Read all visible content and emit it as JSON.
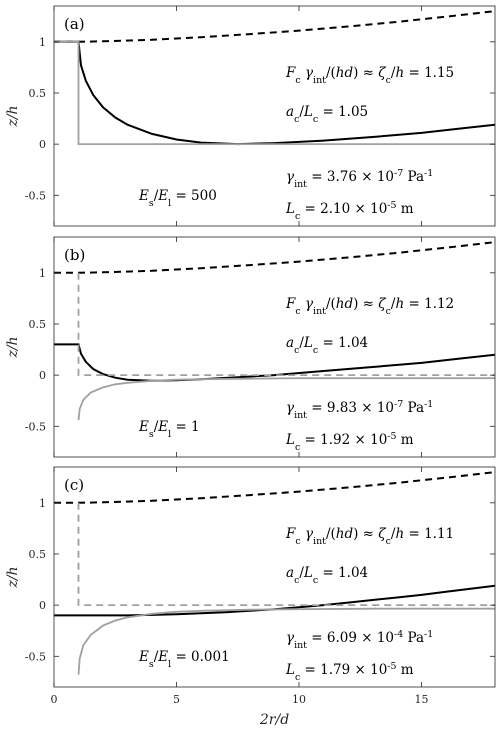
{
  "chart_data": {
    "type": "line",
    "xlabel": "2r/d",
    "ylabel": "z/h",
    "xlim": [
      0,
      18
    ],
    "ylim": [
      -0.8,
      1.35
    ],
    "xticks": [
      0,
      5,
      10,
      15
    ],
    "yticks": [
      -0.5,
      0,
      0.5,
      1
    ],
    "ytick_labels": [
      "-0.5",
      "0",
      "0.5",
      "1"
    ],
    "grid": false,
    "panels": [
      {
        "label": "(a)",
        "annotations": {
          "force_ratio": "F_c γ_int/(hd) ≈ ζ_c/h = 1.15",
          "ac_ratio": "a_c/L_c = 1.05",
          "modulus_ratio": "E_s/E_l = 500",
          "gamma": "γ_int = 3.76 × 10^-7 Pa^-1",
          "lc": "L_c = 2.10 × 10^-5 m"
        },
        "series": [
          {
            "style": "black-dashed",
            "x": [
              0,
              1,
              2,
              4,
              6,
              8,
              10,
              12,
              14,
              16,
              18
            ],
            "y": [
              1.0,
              1.0,
              1.005,
              1.02,
              1.045,
              1.075,
              1.11,
              1.15,
              1.195,
              1.245,
              1.3
            ]
          },
          {
            "style": "black-solid",
            "x": [
              0,
              1,
              1.1,
              1.3,
              1.6,
              2,
              2.5,
              3,
              4,
              5,
              6,
              7.5,
              9,
              11,
              13,
              15,
              16.5,
              18
            ],
            "y": [
              1.0,
              1.0,
              0.77,
              0.62,
              0.48,
              0.36,
              0.26,
              0.19,
              0.1,
              0.045,
              0.015,
              0.0,
              0.01,
              0.035,
              0.07,
              0.11,
              0.15,
              0.19
            ]
          },
          {
            "style": "grey-solid",
            "x": [
              0,
              1,
              1,
              18
            ],
            "y": [
              1.0,
              1.0,
              0.0,
              0.0
            ]
          }
        ]
      },
      {
        "label": "(b)",
        "annotations": {
          "force_ratio": "F_c γ_int/(hd) ≈ ζ_c/h = 1.12",
          "ac_ratio": "a_c/L_c = 1.04",
          "modulus_ratio": "E_s/E_l = 1",
          "gamma": "γ_int = 9.83 × 10^-7 Pa^-1",
          "lc": "L_c = 1.92 × 10^-5 m"
        },
        "series": [
          {
            "style": "black-dashed",
            "x": [
              0,
              1,
              2,
              4,
              6,
              8,
              10,
              12,
              14,
              16,
              18
            ],
            "y": [
              1.0,
              1.0,
              1.005,
              1.02,
              1.045,
              1.075,
              1.11,
              1.15,
              1.195,
              1.245,
              1.3
            ]
          },
          {
            "style": "black-solid",
            "x": [
              0,
              1,
              1.1,
              1.3,
              1.6,
              2,
              2.5,
              3,
              4,
              5,
              6,
              7.5,
              9,
              11,
              13,
              15,
              16.5,
              18
            ],
            "y": [
              0.3,
              0.3,
              0.21,
              0.13,
              0.06,
              0.01,
              -0.025,
              -0.045,
              -0.055,
              -0.05,
              -0.04,
              -0.02,
              0.0,
              0.04,
              0.08,
              0.12,
              0.16,
              0.2
            ]
          },
          {
            "style": "grey-solid",
            "x": [
              1,
              1.05,
              1.2,
              1.5,
              2,
              2.5,
              3,
              4,
              5,
              6,
              8,
              10,
              13,
              18
            ],
            "y": [
              -0.44,
              -0.33,
              -0.24,
              -0.17,
              -0.12,
              -0.09,
              -0.075,
              -0.055,
              -0.045,
              -0.04,
              -0.035,
              -0.03,
              -0.03,
              -0.03
            ]
          },
          {
            "style": "grey-dashed",
            "x": [
              1,
              1,
              18
            ],
            "y": [
              1.0,
              0.0,
              0.0
            ]
          }
        ]
      },
      {
        "label": "(c)",
        "annotations": {
          "force_ratio": "F_c γ_int/(hd) ≈ ζ_c/h = 1.11",
          "ac_ratio": "a_c/L_c = 1.04",
          "modulus_ratio": "E_s/E_l = 0.001",
          "gamma": "γ_int = 6.09 × 10^-4 Pa^-1",
          "lc": "L_c = 1.79 × 10^-5 m"
        },
        "series": [
          {
            "style": "black-dashed",
            "x": [
              0,
              1,
              2,
              4,
              6,
              8,
              10,
              12,
              14,
              16,
              18
            ],
            "y": [
              1.0,
              1.0,
              1.005,
              1.02,
              1.045,
              1.075,
              1.11,
              1.15,
              1.195,
              1.245,
              1.3
            ]
          },
          {
            "style": "black-solid",
            "x": [
              0,
              1,
              2,
              3,
              4,
              5,
              6,
              7,
              8,
              9,
              10,
              11,
              12,
              13,
              14,
              15,
              16,
              17,
              18
            ],
            "y": [
              -0.1,
              -0.1,
              -0.1,
              -0.1,
              -0.095,
              -0.09,
              -0.08,
              -0.07,
              -0.055,
              -0.04,
              -0.02,
              0.0,
              0.025,
              0.05,
              0.075,
              0.1,
              0.13,
              0.16,
              0.19
            ]
          },
          {
            "style": "grey-solid",
            "x": [
              1,
              1.05,
              1.2,
              1.5,
              2,
              2.5,
              3,
              4,
              5,
              6,
              8,
              10,
              13,
              18
            ],
            "y": [
              -0.68,
              -0.52,
              -0.39,
              -0.29,
              -0.2,
              -0.15,
              -0.12,
              -0.085,
              -0.065,
              -0.055,
              -0.045,
              -0.04,
              -0.035,
              -0.035
            ]
          },
          {
            "style": "grey-dashed",
            "x": [
              1,
              1,
              18
            ],
            "y": [
              1.0,
              0.0,
              0.0
            ]
          }
        ]
      }
    ]
  }
}
